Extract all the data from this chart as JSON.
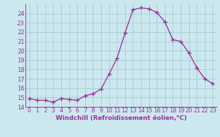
{
  "hours": [
    0,
    1,
    2,
    3,
    4,
    5,
    6,
    7,
    8,
    9,
    10,
    11,
    12,
    13,
    14,
    15,
    16,
    17,
    18,
    19,
    20,
    21,
    22,
    23
  ],
  "values": [
    14.9,
    14.7,
    14.7,
    14.5,
    14.9,
    14.8,
    14.7,
    15.2,
    15.4,
    15.9,
    17.5,
    19.2,
    21.9,
    24.4,
    24.6,
    24.5,
    24.1,
    23.1,
    21.2,
    21.0,
    19.8,
    18.2,
    17.0,
    16.5
  ],
  "line_color": "#993399",
  "marker": "+",
  "marker_size": 4,
  "bg_color": "#cce8ef",
  "grid_color": "#aaccd4",
  "xlabel": "Windchill (Refroidissement éolien,°C)",
  "xlabel_color": "#993399",
  "tick_color": "#993399",
  "ylim": [
    14,
    25
  ],
  "xlim": [
    -0.5,
    23.5
  ],
  "yticks": [
    14,
    15,
    16,
    17,
    18,
    19,
    20,
    21,
    22,
    23,
    24
  ],
  "ytick_labels": [
    "14",
    "15",
    "16",
    "17",
    "18",
    "19",
    "20",
    "21",
    "22",
    "23",
    "24"
  ],
  "xticks": [
    0,
    1,
    2,
    3,
    4,
    5,
    6,
    7,
    8,
    9,
    10,
    11,
    12,
    13,
    14,
    15,
    16,
    17,
    18,
    19,
    20,
    21,
    22,
    23
  ],
  "xtick_labels": [
    "0",
    "1",
    "2",
    "3",
    "4",
    "5",
    "6",
    "7",
    "8",
    "9",
    "10",
    "11",
    "12",
    "13",
    "14",
    "15",
    "16",
    "17",
    "18",
    "19",
    "20",
    "21",
    "22",
    "23"
  ],
  "line_width": 1.0,
  "tick_fontsize": 6.0,
  "xlabel_fontsize": 6.5,
  "xlabel_fontweight": "bold"
}
